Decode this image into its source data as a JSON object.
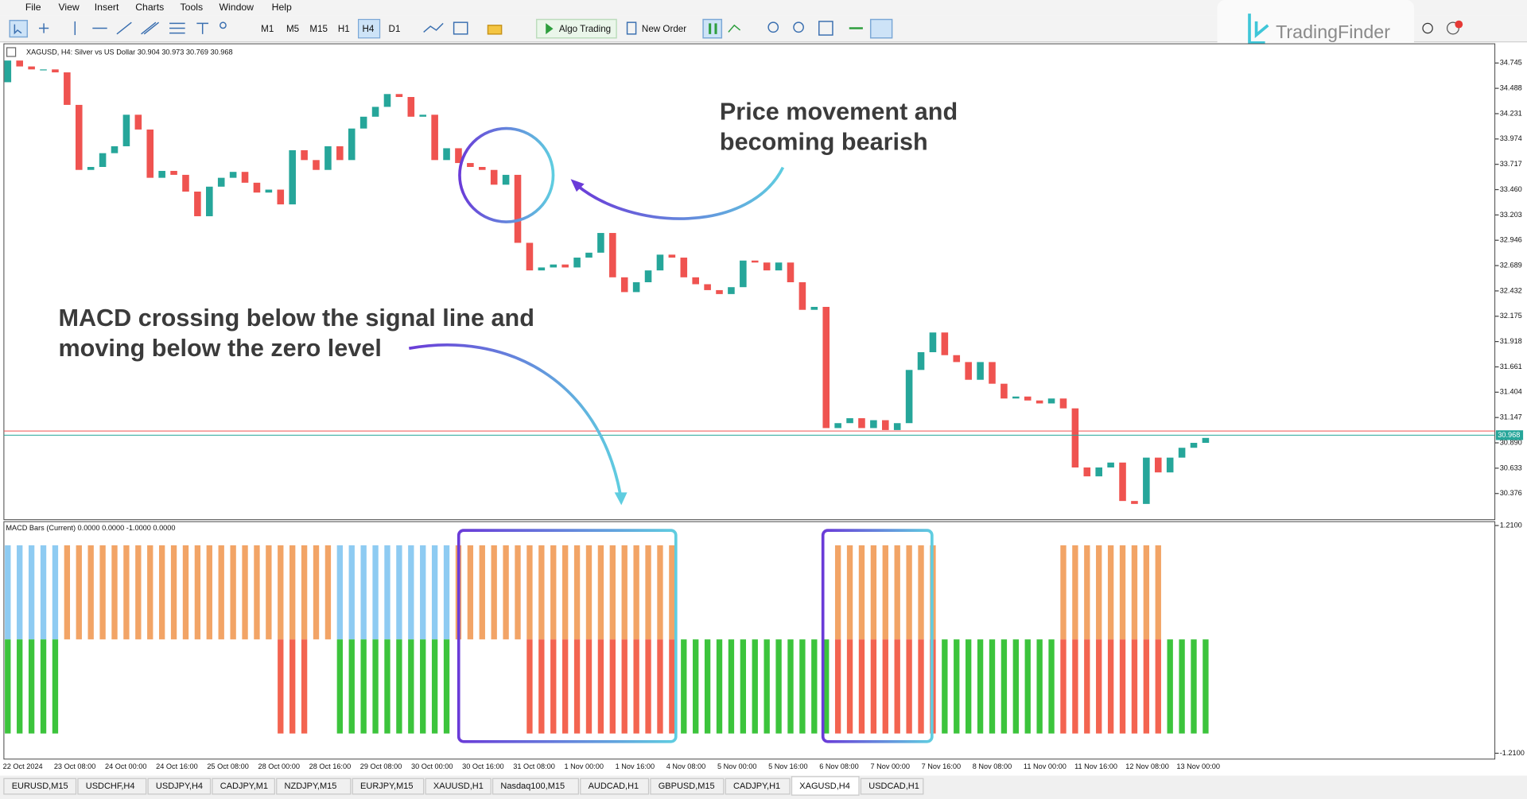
{
  "menu": [
    "File",
    "View",
    "Insert",
    "Charts",
    "Tools",
    "Window",
    "Help"
  ],
  "toolbar": {
    "timeframes": [
      "M1",
      "M5",
      "M15",
      "H1",
      "H4",
      "D1"
    ],
    "active": 4,
    "algo_trading": "Algo Trading",
    "new_order": "New Order"
  },
  "logo": "TradingFinder",
  "tabs": [
    "EURUSD,M15",
    "USDCHF,H4",
    "USDJPY,H4",
    "CADJPY,M1",
    "NZDJPY,M15",
    "EURJPY,M15",
    "XAUUSD,H1",
    "Nasdaq100,M15",
    "AUDCAD,H1",
    "GBPUSD,M15",
    "CADJPY,H1",
    "XAGUSD,H4",
    "USDCAD,H1"
  ],
  "active_tab": 11,
  "annotations": {
    "price": [
      "Price movement and",
      "becoming bearish"
    ],
    "macd": [
      "MACD crossing below the signal line and",
      "moving below the zero level"
    ]
  },
  "chart_data": [
    {
      "type": "candlestick",
      "title": "XAGUSD, H4:  Silver vs US Dollar  30.904 30.973 30.769 30.968",
      "up_color": "#26a69a",
      "down_color": "#ef5350",
      "open": [
        34.55,
        34.77,
        34.71,
        34.68,
        34.68,
        34.65,
        34.32,
        33.66,
        33.69,
        33.83,
        33.9,
        34.22,
        34.07,
        33.58,
        33.65,
        33.61,
        33.44,
        33.19,
        33.49,
        33.58,
        33.64,
        33.53,
        33.43,
        33.46,
        33.31,
        33.86,
        33.76,
        33.66,
        33.9,
        33.76,
        34.08,
        34.2,
        34.3,
        34.43,
        34.4,
        34.2,
        34.22,
        33.76,
        33.88,
        33.73,
        33.69,
        33.66,
        33.51,
        33.61,
        32.92,
        32.64,
        32.67,
        32.7,
        32.67,
        32.77,
        32.82,
        33.02,
        32.57,
        32.42,
        32.52,
        32.64,
        32.8,
        32.77,
        32.57,
        32.5,
        32.44,
        32.4,
        32.47,
        32.74,
        32.72,
        32.64,
        32.72,
        32.52,
        32.24,
        32.27,
        31.04,
        31.09,
        31.14,
        31.04,
        31.12,
        31.02,
        31.09,
        31.63,
        31.81,
        32.01,
        31.78,
        31.71,
        31.53,
        31.71,
        31.49,
        31.34,
        31.36,
        31.32,
        31.29,
        31.34,
        31.24,
        30.64,
        30.55,
        30.64,
        30.69,
        30.3,
        30.27,
        30.74,
        30.59,
        30.74,
        30.84,
        30.89
      ],
      "close": [
        34.77,
        34.71,
        34.68,
        34.68,
        34.65,
        34.32,
        33.66,
        33.69,
        33.83,
        33.9,
        34.22,
        34.07,
        33.58,
        33.65,
        33.61,
        33.44,
        33.19,
        33.49,
        33.58,
        33.64,
        33.53,
        33.43,
        33.46,
        33.31,
        33.86,
        33.76,
        33.66,
        33.9,
        33.76,
        34.08,
        34.2,
        34.3,
        34.43,
        34.4,
        34.2,
        34.22,
        33.76,
        33.88,
        33.73,
        33.69,
        33.66,
        33.51,
        33.61,
        32.92,
        32.64,
        32.67,
        32.7,
        32.67,
        32.77,
        32.82,
        33.02,
        32.57,
        32.42,
        32.52,
        32.64,
        32.8,
        32.77,
        32.57,
        32.5,
        32.44,
        32.4,
        32.47,
        32.74,
        32.72,
        32.64,
        32.72,
        32.52,
        32.24,
        32.27,
        31.04,
        31.09,
        31.14,
        31.04,
        31.12,
        31.02,
        31.09,
        31.63,
        31.81,
        32.01,
        31.78,
        31.71,
        31.53,
        31.71,
        31.49,
        31.34,
        31.36,
        31.32,
        31.29,
        31.34,
        31.24,
        30.64,
        30.55,
        30.64,
        30.69,
        30.3,
        30.27,
        30.74,
        30.59,
        30.74,
        30.84,
        30.89,
        30.94
      ],
      "ylim": [
        30.12,
        34.94
      ],
      "yticks": [
        34.745,
        34.488,
        34.231,
        33.974,
        33.717,
        {
          "value": 33.46,
          "label": "33.460"
        },
        33.203,
        32.946,
        32.689,
        32.432,
        32.175,
        31.918,
        31.661,
        31.404,
        31.147,
        {
          "value": 30.89,
          "label": "30.890"
        },
        30.633,
        30.376
      ],
      "bid": 30.968,
      "bid_color": "#26a69a",
      "ask": 31.01,
      "ask_color": "#ef5350",
      "x_labels": [
        "22 Oct 2024",
        "23 Oct 08:00",
        "24 Oct 00:00",
        "24 Oct 16:00",
        "25 Oct 08:00",
        "28 Oct 00:00",
        "28 Oct 16:00",
        "29 Oct 08:00",
        "30 Oct 00:00",
        "30 Oct 16:00",
        "31 Oct 08:00",
        "1 Nov 00:00",
        "1 Nov 16:00",
        "4 Nov 08:00",
        "5 Nov 00:00",
        "5 Nov 16:00",
        "6 Nov 08:00",
        "7 Nov 00:00",
        "7 Nov 16:00",
        "8 Nov 08:00",
        "11 Nov 00:00",
        "11 Nov 16:00",
        "12 Nov 08:00",
        "13 Nov 00:00"
      ]
    },
    {
      "type": "bar",
      "title": "MACD Bars (Current) 0.0000 0.0000 -1.0000 0.0000",
      "ylim": [
        -1.21,
        1.21
      ],
      "yticks": [
        {
          "value": 1.21,
          "label": "1.2100"
        },
        {
          "value": -1.21,
          "label": "-1.2100"
        }
      ],
      "series": [
        {
          "values": [
            1,
            1,
            1,
            1,
            1,
            1,
            1,
            1,
            1,
            1,
            1,
            1,
            1,
            1,
            1,
            1,
            1,
            1,
            1,
            1,
            1,
            1,
            1,
            1,
            1,
            1,
            1,
            1,
            1,
            1,
            1,
            1,
            1,
            1,
            1,
            1,
            1,
            1,
            1,
            1,
            1,
            1,
            1,
            1,
            1,
            1,
            1,
            1,
            1,
            1,
            1,
            1,
            1,
            1,
            1,
            1,
            1,
            null,
            null,
            null,
            null,
            null,
            null,
            null,
            null,
            null,
            null,
            null,
            null,
            null,
            1,
            1,
            1,
            1,
            1,
            1,
            1,
            1,
            1,
            null,
            null,
            null,
            null,
            null,
            null,
            null,
            null,
            null,
            null,
            1,
            1,
            1,
            1,
            1,
            1,
            1,
            1,
            1,
            null,
            null,
            null,
            null
          ],
          "colors": [
            "#8ecbf2",
            "#8ecbf2",
            "#8ecbf2",
            "#8ecbf2",
            "#8ecbf2",
            "#f2a466",
            "#f2a466",
            "#f2a466",
            "#f2a466",
            "#f2a466",
            "#f2a466",
            "#f2a466",
            "#f2a466",
            "#f2a466",
            "#f2a466",
            "#f2a466",
            "#f2a466",
            "#f2a466",
            "#f2a466",
            "#f2a466",
            "#f2a466",
            "#f2a466",
            "#f2a466",
            "#f2a466",
            "#f2a466",
            "#f2a466",
            "#f2a466",
            "#f2a466",
            "#8ecbf2",
            "#8ecbf2",
            "#8ecbf2",
            "#8ecbf2",
            "#8ecbf2",
            "#8ecbf2",
            "#8ecbf2",
            "#8ecbf2",
            "#8ecbf2",
            "#8ecbf2",
            "#f2a466",
            "#f2a466",
            "#f2a466",
            "#f2a466",
            "#f2a466",
            "#f2a466",
            "#f2a466",
            "#f2a466",
            "#f2a466",
            "#f2a466",
            "#f2a466",
            "#f2a466",
            "#f2a466",
            "#f2a466",
            "#f2a466",
            "#f2a466",
            "#f2a466",
            "#f2a466",
            "#f2a466",
            null,
            null,
            null,
            null,
            null,
            null,
            null,
            null,
            null,
            null,
            null,
            null,
            null,
            "#f2a466",
            "#f2a466",
            "#f2a466",
            "#f2a466",
            "#f2a466",
            "#f2a466",
            "#f2a466",
            "#f2a466",
            "#f2a466",
            null,
            null,
            null,
            null,
            null,
            null,
            null,
            null,
            null,
            null,
            "#f2a466",
            "#f2a466",
            "#f2a466",
            "#f2a466",
            "#f2a466",
            "#f2a466",
            "#f2a466",
            "#f2a466",
            "#f2a466",
            null,
            null,
            null,
            null
          ]
        },
        {
          "values": [
            -1,
            -1,
            -1,
            -1,
            -1,
            null,
            null,
            null,
            null,
            null,
            null,
            null,
            null,
            null,
            null,
            null,
            null,
            null,
            null,
            null,
            null,
            null,
            null,
            -1,
            -1,
            -1,
            null,
            null,
            -1,
            -1,
            -1,
            -1,
            -1,
            -1,
            -1,
            -1,
            -1,
            -1,
            null,
            null,
            null,
            null,
            null,
            null,
            -1,
            -1,
            -1,
            -1,
            -1,
            -1,
            -1,
            -1,
            -1,
            -1,
            -1,
            -1,
            -1,
            -1,
            -1,
            -1,
            -1,
            -1,
            -1,
            -1,
            -1,
            -1,
            -1,
            -1,
            -1,
            -1,
            -1,
            -1,
            -1,
            -1,
            -1,
            -1,
            -1,
            -1,
            -1,
            -1,
            -1,
            -1,
            -1,
            -1,
            -1,
            -1,
            -1,
            -1,
            -1,
            -1,
            -1,
            -1,
            -1,
            -1,
            -1,
            -1,
            -1,
            -1,
            -1,
            -1,
            -1,
            -1
          ],
          "colors": [
            "#3cc43c",
            "#3cc43c",
            "#3cc43c",
            "#3cc43c",
            "#3cc43c",
            null,
            null,
            null,
            null,
            null,
            null,
            null,
            null,
            null,
            null,
            null,
            null,
            null,
            null,
            null,
            null,
            null,
            null,
            "#f36450",
            "#f36450",
            "#f36450",
            null,
            null,
            "#3cc43c",
            "#3cc43c",
            "#3cc43c",
            "#3cc43c",
            "#3cc43c",
            "#3cc43c",
            "#3cc43c",
            "#3cc43c",
            "#3cc43c",
            "#3cc43c",
            null,
            null,
            null,
            null,
            null,
            null,
            "#f36450",
            "#f36450",
            "#f36450",
            "#f36450",
            "#f36450",
            "#f36450",
            "#f36450",
            "#f36450",
            "#f36450",
            "#f36450",
            "#f36450",
            "#f36450",
            "#f36450",
            "#3cc43c",
            "#3cc43c",
            "#3cc43c",
            "#3cc43c",
            "#3cc43c",
            "#3cc43c",
            "#3cc43c",
            "#3cc43c",
            "#3cc43c",
            "#3cc43c",
            "#3cc43c",
            "#3cc43c",
            "#3cc43c",
            "#f36450",
            "#f36450",
            "#f36450",
            "#f36450",
            "#f36450",
            "#f36450",
            "#f36450",
            "#f36450",
            "#f36450",
            "#3cc43c",
            "#3cc43c",
            "#3cc43c",
            "#3cc43c",
            "#3cc43c",
            "#3cc43c",
            "#3cc43c",
            "#3cc43c",
            "#3cc43c",
            "#3cc43c",
            "#f36450",
            "#f36450",
            "#f36450",
            "#f36450",
            "#f36450",
            "#f36450",
            "#f36450",
            "#f36450",
            "#f36450",
            "#3cc43c",
            "#3cc43c",
            "#3cc43c",
            "#3cc43c"
          ]
        }
      ]
    }
  ]
}
